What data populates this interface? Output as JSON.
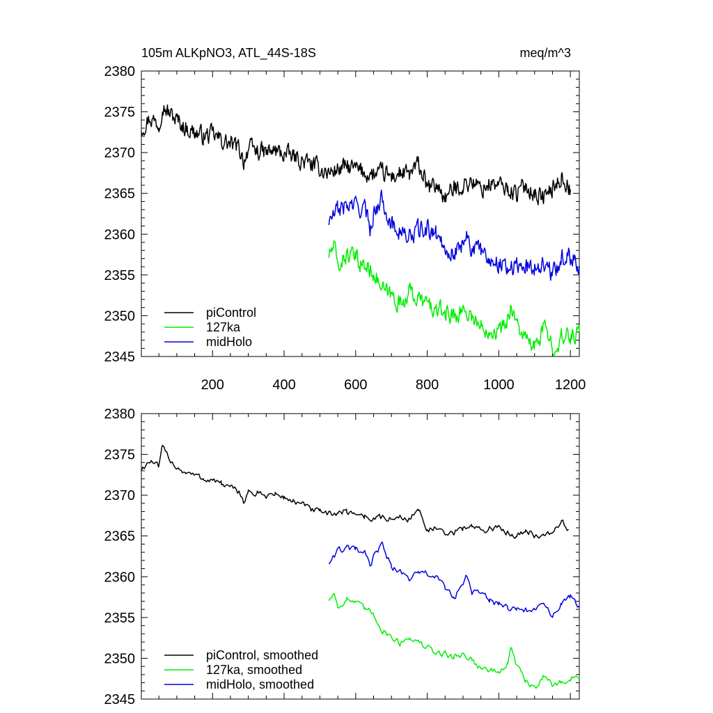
{
  "title": "105m ALKpNO3, ATL_44S-18S",
  "units": "meq/m^3",
  "colors": {
    "piControl": "#000000",
    "127ka": "#00ee00",
    "midHolo": "#0000dd"
  },
  "chart_data": [
    {
      "type": "line",
      "panel": "raw",
      "title": "105m ALKpNO3, ATL_44S-18S",
      "units_label": "meq/m^3",
      "xlim": [
        1,
        1225
      ],
      "ylim": [
        2345,
        2380
      ],
      "xticks": [
        200,
        400,
        600,
        800,
        1000,
        1200
      ],
      "yticks": [
        2345,
        2350,
        2355,
        2360,
        2365,
        2370,
        2375,
        2380
      ],
      "x_tick_labels_shown": true,
      "legend_position": "bottom-left",
      "grid": false,
      "series": [
        {
          "name": "piControl",
          "color": "#000000",
          "x": [
            1,
            25,
            50,
            60,
            75,
            100,
            125,
            150,
            175,
            200,
            225,
            250,
            275,
            287,
            300,
            325,
            350,
            375,
            400,
            425,
            450,
            475,
            500,
            525,
            550,
            575,
            600,
            625,
            650,
            675,
            700,
            725,
            750,
            775,
            790,
            800,
            825,
            850,
            875,
            900,
            925,
            950,
            975,
            1000,
            1025,
            1050,
            1075,
            1100,
            1125,
            1150,
            1175,
            1200
          ],
          "y": [
            2373,
            2374.3,
            2373.5,
            2376,
            2375,
            2374,
            2373,
            2372.5,
            2372,
            2372.2,
            2371.5,
            2371,
            2370.5,
            2369,
            2370.5,
            2370.2,
            2370,
            2370.2,
            2369.8,
            2369.5,
            2369,
            2368.5,
            2368,
            2367.5,
            2368,
            2368.2,
            2368,
            2367.5,
            2367.2,
            2367.5,
            2367,
            2367.5,
            2367.2,
            2368.5,
            2367,
            2365.5,
            2366,
            2364.5,
            2365.5,
            2366,
            2366.5,
            2365.5,
            2366.2,
            2366,
            2365.5,
            2365,
            2366,
            2365,
            2364.5,
            2365.5,
            2367,
            2365.5
          ]
        },
        {
          "name": "127ka",
          "color": "#00ee00",
          "x": [
            525,
            540,
            550,
            575,
            600,
            625,
            650,
            675,
            700,
            725,
            750,
            775,
            800,
            825,
            850,
            875,
            900,
            925,
            950,
            975,
            1000,
            1025,
            1035,
            1050,
            1075,
            1100,
            1125,
            1150,
            1175,
            1200,
            1225
          ],
          "y": [
            2357.5,
            2358.5,
            2356,
            2357.5,
            2357,
            2356,
            2355.5,
            2353,
            2352.5,
            2351.5,
            2353,
            2352,
            2351.5,
            2350.5,
            2350.5,
            2350,
            2350.8,
            2350,
            2348.5,
            2348.5,
            2348,
            2349.5,
            2351.5,
            2349,
            2347,
            2346,
            2348.5,
            2346.5,
            2347,
            2347.5,
            2348
          ]
        },
        {
          "name": "midHolo",
          "color": "#0000dd",
          "x": [
            525,
            550,
            575,
            600,
            625,
            640,
            650,
            675,
            700,
            725,
            750,
            775,
            800,
            825,
            850,
            875,
            900,
            910,
            925,
            950,
            975,
            1000,
            1025,
            1050,
            1075,
            1100,
            1125,
            1150,
            1175,
            1200,
            1225
          ],
          "y": [
            2361.5,
            2363,
            2363.5,
            2363.5,
            2363,
            2361,
            2362.5,
            2364.5,
            2361,
            2360.5,
            2359.5,
            2360.5,
            2360.5,
            2360,
            2358.5,
            2357.5,
            2359,
            2360.5,
            2358,
            2358,
            2357,
            2356.5,
            2356,
            2356,
            2356,
            2356,
            2356.5,
            2355,
            2357,
            2357.5,
            2356
          ]
        }
      ],
      "legend": [
        "piControl",
        "127ka",
        "midHolo"
      ]
    },
    {
      "type": "line",
      "panel": "smoothed",
      "xlim": [
        1,
        1225
      ],
      "ylim": [
        2345,
        2380
      ],
      "xticks": [
        200,
        400,
        600,
        800,
        1000,
        1200
      ],
      "yticks": [
        2345,
        2350,
        2355,
        2360,
        2365,
        2370,
        2375,
        2380
      ],
      "x_tick_labels_shown": false,
      "legend_position": "bottom-left",
      "grid": false,
      "series": [
        {
          "name": "piControl, smoothed",
          "color": "#000000",
          "x": [
            1,
            25,
            50,
            60,
            75,
            100,
            125,
            150,
            175,
            200,
            225,
            250,
            275,
            287,
            300,
            325,
            350,
            375,
            400,
            425,
            450,
            475,
            500,
            525,
            550,
            575,
            600,
            625,
            650,
            675,
            700,
            725,
            750,
            775,
            790,
            800,
            825,
            850,
            875,
            900,
            925,
            950,
            975,
            1000,
            1025,
            1050,
            1075,
            1100,
            1125,
            1150,
            1175,
            1195
          ],
          "y": [
            2373.2,
            2374.2,
            2373.4,
            2375.8,
            2374.8,
            2373.4,
            2372.8,
            2372.4,
            2372,
            2371.9,
            2371.4,
            2370.8,
            2370.4,
            2369.3,
            2370.4,
            2370.1,
            2370,
            2370.1,
            2369.7,
            2369.3,
            2368.8,
            2368.3,
            2367.9,
            2367.6,
            2367.9,
            2368,
            2367.8,
            2367.4,
            2367.1,
            2367.3,
            2367,
            2367.3,
            2367.1,
            2368.2,
            2367,
            2365.8,
            2365.9,
            2365,
            2365.4,
            2365.9,
            2366.3,
            2365.6,
            2366,
            2365.9,
            2365.4,
            2365.1,
            2365.8,
            2365.1,
            2364.8,
            2365.5,
            2366.7,
            2365.8
          ]
        },
        {
          "name": "127ka, smoothed",
          "color": "#00ee00",
          "x": [
            525,
            540,
            550,
            575,
            600,
            625,
            650,
            675,
            700,
            725,
            750,
            775,
            800,
            825,
            850,
            875,
            900,
            925,
            950,
            975,
            1000,
            1025,
            1035,
            1050,
            1075,
            1100,
            1125,
            1150,
            1175,
            1200,
            1225
          ],
          "y": [
            2357.2,
            2358,
            2356.3,
            2357.3,
            2356.8,
            2356,
            2355.5,
            2353.4,
            2352.7,
            2351.8,
            2352.7,
            2351.9,
            2351.3,
            2350.6,
            2350.6,
            2350.1,
            2350.5,
            2349.9,
            2348.7,
            2348.6,
            2348.2,
            2349.4,
            2351.2,
            2349.1,
            2347.2,
            2346.2,
            2348.1,
            2346.7,
            2347,
            2347.5,
            2347.8
          ]
        },
        {
          "name": "midHolo, smoothed",
          "color": "#0000dd",
          "x": [
            525,
            550,
            575,
            600,
            625,
            640,
            650,
            675,
            700,
            725,
            750,
            775,
            800,
            825,
            850,
            875,
            900,
            910,
            925,
            950,
            975,
            1000,
            1025,
            1050,
            1075,
            1100,
            1125,
            1150,
            1175,
            1200,
            1225
          ],
          "y": [
            2361.7,
            2363.2,
            2363.4,
            2363.3,
            2362.8,
            2361.3,
            2362.4,
            2364,
            2361.2,
            2360.6,
            2359.8,
            2360.4,
            2360.4,
            2359.9,
            2358.6,
            2357.6,
            2358.8,
            2360.3,
            2358.1,
            2358,
            2357.1,
            2356.6,
            2356.1,
            2356,
            2355.9,
            2356,
            2356.4,
            2355.2,
            2356.8,
            2357.5,
            2356.2
          ]
        }
      ],
      "legend": [
        "piControl, smoothed",
        "127ka, smoothed",
        "midHolo, smoothed"
      ]
    }
  ]
}
